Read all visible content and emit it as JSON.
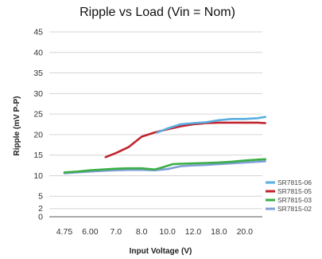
{
  "chart_data": {
    "type": "line",
    "title": "Ripple vs Load (Vin = Nom)",
    "xlabel": "Input Voltage (V)",
    "ylabel": "Ripple (mV P-P)",
    "x_tick_labels": [
      "4.75",
      "6.00",
      "7.0",
      "8.0",
      "10.0",
      "12.0",
      "18.0",
      "20.0"
    ],
    "y_ticks": [
      0,
      2,
      5,
      10,
      15,
      20,
      25,
      30,
      35,
      40,
      45
    ],
    "ylim": [
      0,
      45
    ],
    "grid": true,
    "legend_position": "bottom-right",
    "series": [
      {
        "name": "SR7815-06",
        "color": "#5aaee0",
        "points": [
          [
            3.6,
            20.5
          ],
          [
            4.0,
            21.5
          ],
          [
            4.5,
            22.5
          ],
          [
            5.0,
            22.8
          ],
          [
            5.5,
            23.0
          ],
          [
            6.0,
            23.5
          ],
          [
            6.5,
            23.8
          ],
          [
            7.0,
            23.8
          ],
          [
            7.5,
            24.0
          ],
          [
            7.8,
            24.3
          ]
        ]
      },
      {
        "name": "SR7815-05",
        "color": "#c0242e",
        "points": [
          [
            1.6,
            14.5
          ],
          [
            2.0,
            15.5
          ],
          [
            2.5,
            17.0
          ],
          [
            3.0,
            19.5
          ],
          [
            3.5,
            20.5
          ],
          [
            4.0,
            21.3
          ],
          [
            4.5,
            22.0
          ],
          [
            5.0,
            22.5
          ],
          [
            5.5,
            22.8
          ],
          [
            6.0,
            22.9
          ],
          [
            6.5,
            22.9
          ],
          [
            7.0,
            22.9
          ],
          [
            7.5,
            22.9
          ],
          [
            7.8,
            22.8
          ]
        ]
      },
      {
        "name": "SR7815-03",
        "color": "#3aae45",
        "points": [
          [
            0.0,
            10.8
          ],
          [
            0.5,
            11.0
          ],
          [
            1.0,
            11.3
          ],
          [
            1.5,
            11.5
          ],
          [
            2.0,
            11.7
          ],
          [
            2.5,
            11.8
          ],
          [
            3.0,
            11.8
          ],
          [
            3.5,
            11.5
          ],
          [
            3.8,
            12.0
          ],
          [
            4.2,
            12.8
          ],
          [
            4.5,
            12.9
          ],
          [
            5.0,
            13.0
          ],
          [
            5.5,
            13.1
          ],
          [
            6.0,
            13.2
          ],
          [
            6.5,
            13.4
          ],
          [
            7.0,
            13.7
          ],
          [
            7.5,
            13.9
          ],
          [
            7.8,
            14.0
          ]
        ]
      },
      {
        "name": "SR7815-02",
        "color": "#7fa0d6",
        "points": [
          [
            0.0,
            10.6
          ],
          [
            0.5,
            10.8
          ],
          [
            1.0,
            11.0
          ],
          [
            1.5,
            11.2
          ],
          [
            2.0,
            11.3
          ],
          [
            2.5,
            11.4
          ],
          [
            3.0,
            11.4
          ],
          [
            3.5,
            11.3
          ],
          [
            4.0,
            11.6
          ],
          [
            4.5,
            12.3
          ],
          [
            5.0,
            12.5
          ],
          [
            5.5,
            12.6
          ],
          [
            6.0,
            12.8
          ],
          [
            6.5,
            13.0
          ],
          [
            7.0,
            13.2
          ],
          [
            7.5,
            13.4
          ],
          [
            7.8,
            13.5
          ]
        ]
      }
    ]
  }
}
